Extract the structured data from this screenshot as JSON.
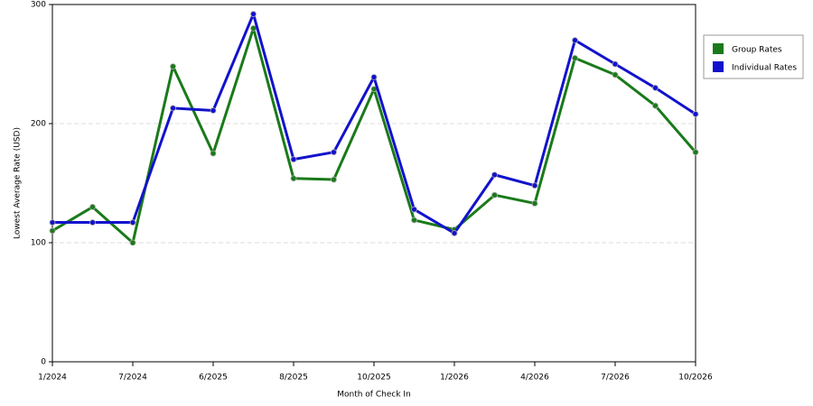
{
  "chart_data": {
    "type": "line",
    "x_label": "Month of Check In",
    "y_label": "Lowest Average Rate (USD)",
    "categories": [
      "1/2024",
      null,
      "7/2024",
      null,
      "6/2025",
      null,
      "8/2025",
      null,
      "10/2025",
      null,
      "1/2026",
      null,
      "4/2026",
      null,
      "7/2026",
      null,
      "10/2026"
    ],
    "series": [
      {
        "name": "Group Rates",
        "color": "#1a7a1a",
        "values": [
          110,
          130,
          100,
          248,
          175,
          280,
          154,
          153,
          229,
          119,
          111,
          140,
          133,
          255,
          241,
          215,
          176
        ]
      },
      {
        "name": "Individual Rates",
        "color": "#1212cc",
        "values": [
          117,
          117,
          117,
          213,
          211,
          292,
          170,
          176,
          239,
          128,
          108,
          157,
          148,
          270,
          250,
          230,
          208
        ]
      }
    ],
    "ylim": [
      0,
      300
    ],
    "yticks": [
      0,
      100,
      200,
      300
    ],
    "grid": true,
    "legend": "right"
  }
}
